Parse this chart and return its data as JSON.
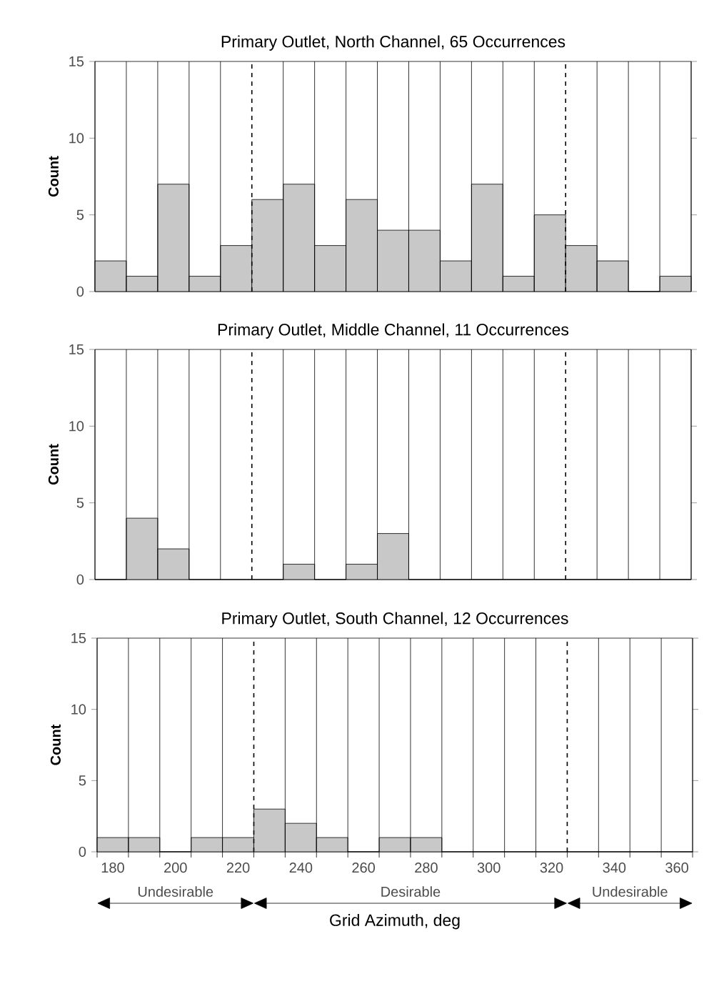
{
  "chart_data": [
    {
      "type": "histogram",
      "title": "Primary Outlet, North Channel, 65 Occurrences",
      "ylabel": "Count",
      "bins": [
        175,
        185,
        195,
        205,
        215,
        225,
        235,
        245,
        255,
        265,
        275,
        285,
        295,
        305,
        315,
        325,
        335,
        345,
        355,
        365
      ],
      "values": [
        2,
        1,
        7,
        1,
        3,
        6,
        7,
        3,
        6,
        4,
        4,
        2,
        7,
        1,
        5,
        3,
        2,
        0,
        1
      ],
      "color": "#c8c8c8",
      "xlim": [
        175,
        365
      ],
      "ylim": [
        0,
        15
      ],
      "yticks": [
        0,
        5,
        10,
        15
      ],
      "grid": "x",
      "tick_labels": "y",
      "ref_lines": [
        {
          "axis": "x",
          "value": 225,
          "line_style": "dashed"
        },
        {
          "axis": "x",
          "value": 325,
          "line_style": "dashed"
        }
      ]
    },
    {
      "type": "histogram",
      "title": "Primary Outlet, Middle Channel, 11 Occurrences",
      "ylabel": "Count",
      "bins": [
        175,
        185,
        195,
        205,
        215,
        225,
        235,
        245,
        255,
        265,
        275,
        285,
        295,
        305,
        315,
        325,
        335,
        345,
        355,
        365
      ],
      "values": [
        0,
        4,
        2,
        0,
        0,
        0,
        1,
        0,
        1,
        3,
        0,
        0,
        0,
        0,
        0,
        0,
        0,
        0,
        0
      ],
      "color": "#c8c8c8",
      "xlim": [
        175,
        365
      ],
      "ylim": [
        0,
        15
      ],
      "yticks": [
        0,
        5,
        10,
        15
      ],
      "grid": "x",
      "tick_labels": "y",
      "ref_lines": [
        {
          "axis": "x",
          "value": 225,
          "line_style": "dashed"
        },
        {
          "axis": "x",
          "value": 325,
          "line_style": "dashed"
        }
      ]
    },
    {
      "type": "histogram",
      "title": "Primary Outlet, South Channel, 12 Occurrences",
      "ylabel": "Count",
      "xlabel": "Grid Azimuth, deg",
      "bins": [
        175,
        185,
        195,
        205,
        215,
        225,
        235,
        245,
        255,
        265,
        275,
        285,
        295,
        305,
        315,
        325,
        335,
        345,
        355,
        365
      ],
      "values": [
        1,
        1,
        0,
        1,
        1,
        3,
        2,
        1,
        0,
        1,
        1,
        0,
        0,
        0,
        0,
        0,
        0,
        0,
        0
      ],
      "color": "#c8c8c8",
      "xlim": [
        175,
        365
      ],
      "ylim": [
        0,
        15
      ],
      "yticks": [
        0,
        5,
        10,
        15
      ],
      "xticks": [
        180,
        200,
        220,
        240,
        260,
        280,
        300,
        320,
        340,
        360
      ],
      "grid": "x",
      "ref_lines": [
        {
          "axis": "x",
          "value": 225,
          "line_style": "dashed"
        },
        {
          "axis": "x",
          "value": 325,
          "line_style": "dashed"
        }
      ],
      "annotations": [
        "Undesirable",
        "Desirable",
        "Undesirable"
      ]
    }
  ]
}
